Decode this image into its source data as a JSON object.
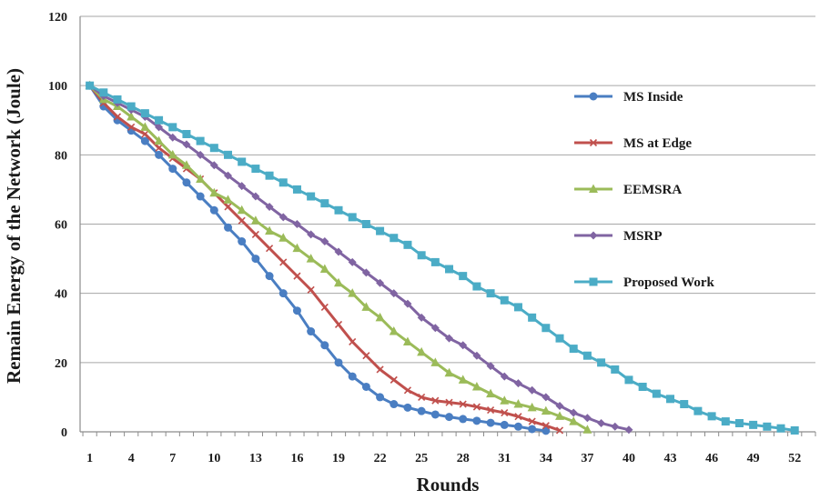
{
  "chart_data": {
    "type": "line",
    "title": "",
    "xlabel": "Rounds",
    "ylabel": "Remain Energy of the Network (Joule)",
    "xlim": [
      0.3,
      53.5
    ],
    "ylim": [
      0,
      120
    ],
    "x_ticks": [
      1,
      4,
      7,
      10,
      13,
      16,
      19,
      22,
      25,
      28,
      31,
      34,
      37,
      40,
      43,
      46,
      49,
      52
    ],
    "y_ticks": [
      0,
      20,
      40,
      60,
      80,
      100,
      120
    ],
    "grid": "horizontal",
    "legend_position": "right",
    "series": [
      {
        "name": "MS Inside",
        "color": "#4a7ec2",
        "marker": "circle",
        "x": [
          1,
          2,
          3,
          4,
          5,
          6,
          7,
          8,
          9,
          10,
          11,
          12,
          13,
          14,
          15,
          16,
          17,
          18,
          19,
          20,
          21,
          22,
          23,
          24,
          25,
          26,
          27,
          28,
          29,
          30,
          31,
          32,
          33,
          34
        ],
        "values": [
          100,
          94,
          90,
          87,
          84,
          80,
          76,
          72,
          68,
          64,
          59,
          55,
          50,
          45,
          40,
          35,
          29,
          25,
          20,
          16,
          13,
          10,
          8,
          7,
          6,
          5,
          4.3,
          3.7,
          3.2,
          2.6,
          2,
          1.5,
          0.8,
          0.3
        ]
      },
      {
        "name": "MS at Edge",
        "color": "#c0504d",
        "marker": "x",
        "x": [
          1,
          2,
          3,
          4,
          5,
          6,
          7,
          8,
          9,
          10,
          11,
          12,
          13,
          14,
          15,
          16,
          17,
          18,
          19,
          20,
          21,
          22,
          23,
          24,
          25,
          26,
          27,
          28,
          29,
          30,
          31,
          32,
          33,
          34,
          35
        ],
        "values": [
          100,
          95,
          91,
          88,
          86,
          82,
          79,
          76,
          73,
          69,
          65,
          61,
          57,
          53,
          49,
          45,
          41,
          36,
          31,
          26,
          22,
          18,
          15,
          12,
          10,
          9,
          8.5,
          8,
          7.2,
          6.3,
          5.5,
          4.4,
          3,
          1.8,
          0.4
        ]
      },
      {
        "name": "EEMSRA",
        "color": "#9bbb59",
        "marker": "triangle",
        "x": [
          1,
          2,
          3,
          4,
          5,
          6,
          7,
          8,
          9,
          10,
          11,
          12,
          13,
          14,
          15,
          16,
          17,
          18,
          19,
          20,
          21,
          22,
          23,
          24,
          25,
          26,
          27,
          28,
          29,
          30,
          31,
          32,
          33,
          34,
          35,
          36,
          37
        ],
        "values": [
          100,
          96,
          94,
          91,
          88,
          84,
          80,
          77,
          73,
          69,
          67,
          64,
          61,
          58,
          56,
          53,
          50,
          47,
          43,
          40,
          36,
          33,
          29,
          26,
          23,
          20,
          17,
          15,
          13,
          11,
          9,
          8,
          7,
          6,
          4.5,
          3,
          0.6
        ]
      },
      {
        "name": "MSRP",
        "color": "#8064a2",
        "marker": "diamond",
        "x": [
          1,
          2,
          3,
          4,
          5,
          6,
          7,
          8,
          9,
          10,
          11,
          12,
          13,
          14,
          15,
          16,
          17,
          18,
          19,
          20,
          21,
          22,
          23,
          24,
          25,
          26,
          27,
          28,
          29,
          30,
          31,
          32,
          33,
          34,
          35,
          36,
          37,
          38,
          39,
          40
        ],
        "values": [
          100,
          97,
          95,
          93,
          91,
          88,
          85,
          83,
          80,
          77,
          74,
          71,
          68,
          65,
          62,
          60,
          57,
          55,
          52,
          49,
          46,
          43,
          40,
          37,
          33,
          30,
          27,
          25,
          22,
          19,
          16,
          14,
          12,
          10,
          7.5,
          5.5,
          4,
          2.5,
          1.5,
          0.6
        ]
      },
      {
        "name": "Proposed Work",
        "color": "#4bacc6",
        "marker": "square",
        "x": [
          1,
          2,
          3,
          4,
          5,
          6,
          7,
          8,
          9,
          10,
          11,
          12,
          13,
          14,
          15,
          16,
          17,
          18,
          19,
          20,
          21,
          22,
          23,
          24,
          25,
          26,
          27,
          28,
          29,
          30,
          31,
          32,
          33,
          34,
          35,
          36,
          37,
          38,
          39,
          40,
          41,
          42,
          43,
          44,
          45,
          46,
          47,
          48,
          49,
          50,
          51,
          52
        ],
        "values": [
          100,
          98,
          96,
          94,
          92,
          90,
          88,
          86,
          84,
          82,
          80,
          78,
          76,
          74,
          72,
          70,
          68,
          66,
          64,
          62,
          60,
          58,
          56,
          54,
          51,
          49,
          47,
          45,
          42,
          40,
          38,
          36,
          33,
          30,
          27,
          24,
          22,
          20,
          18,
          15,
          13,
          11,
          9.5,
          8,
          6,
          4.5,
          3,
          2.5,
          2,
          1.5,
          1,
          0.4
        ]
      }
    ]
  }
}
